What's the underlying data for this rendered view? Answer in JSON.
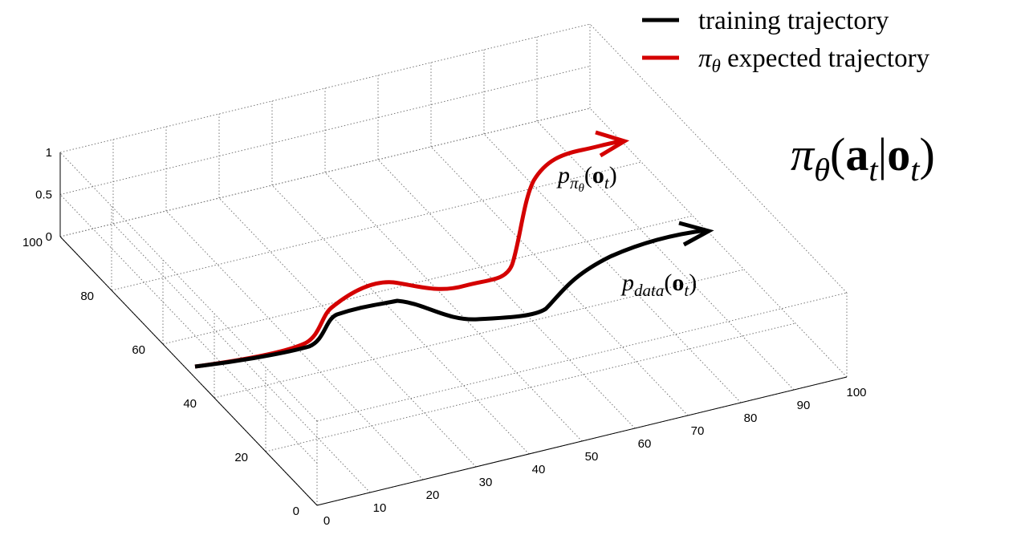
{
  "legend": [
    {
      "color": "#000000",
      "parts": [
        {
          "text": "training trajectory"
        }
      ]
    },
    {
      "color": "#d40000",
      "parts": [
        {
          "text": "π",
          "style": "italic"
        },
        {
          "text": "θ",
          "style": "sub"
        },
        {
          "text": " expected trajectory"
        }
      ]
    }
  ],
  "formula": {
    "parts": [
      {
        "text": "π",
        "style": "italic"
      },
      {
        "text": "θ",
        "style": "sub"
      },
      {
        "text": "("
      },
      {
        "text": "a",
        "style": "bold"
      },
      {
        "text": "t",
        "style": "sub"
      },
      {
        "text": "|"
      },
      {
        "text": "o",
        "style": "bold"
      },
      {
        "text": "t",
        "style": "sub"
      },
      {
        "text": ")"
      }
    ]
  },
  "annotations": [
    {
      "parts": [
        {
          "text": "p",
          "style": "italic"
        },
        {
          "text": "π",
          "style": "sub"
        },
        {
          "text": "θ",
          "style": "subsub"
        },
        {
          "text": "("
        },
        {
          "text": "o",
          "style": "bold"
        },
        {
          "text": "t",
          "style": "sub"
        },
        {
          "text": ")"
        }
      ]
    },
    {
      "parts": [
        {
          "text": "p",
          "style": "italic"
        },
        {
          "text": "data",
          "style": "sub"
        },
        {
          "text": "("
        },
        {
          "text": "o",
          "style": "bold"
        },
        {
          "text": "t",
          "style": "sub"
        },
        {
          "text": ")"
        }
      ]
    }
  ],
  "axes": {
    "x_ticks": [
      0,
      10,
      20,
      30,
      40,
      50,
      60,
      70,
      80,
      90,
      100
    ],
    "y_ticks": [
      0,
      20,
      40,
      60,
      80,
      100
    ],
    "z_ticks": [
      0,
      0.5,
      1
    ]
  }
}
